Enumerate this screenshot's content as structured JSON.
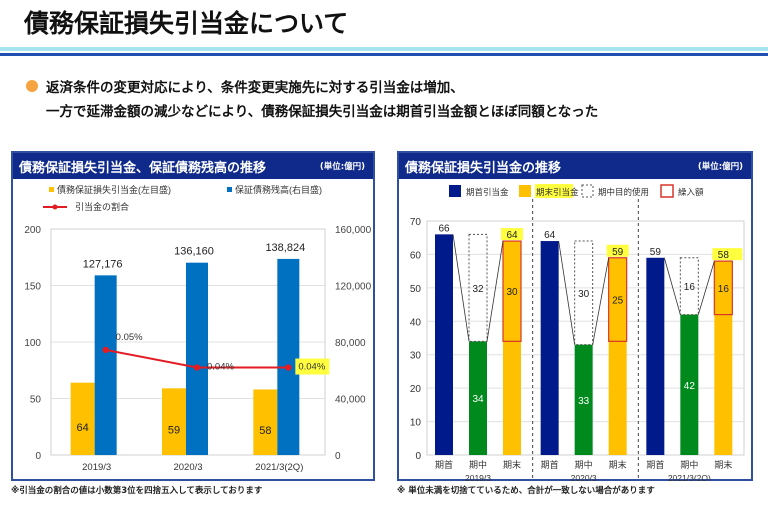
{
  "page": {
    "title": "債務保証損失引当金について",
    "lead_line1": "返済条件の変更対応により、条件変更実施先に対する引当金は増加、",
    "lead_line2": "一方で延滞金額の減少などにより、債務保証損失引当金は期首引当金額とほぼ同額となった",
    "bullet_color": "#f6a341"
  },
  "panels": {
    "left": {
      "title": "債務保証損失引当金、保証債務残高の推移",
      "unit": "(単位:億円)",
      "note": "※引当金の割合の値は小数第3位を四捨五入して表示しております"
    },
    "right": {
      "title": "債務保証損失引当金の推移",
      "unit": "(単位:億円)",
      "note": "※ 単位未満を切捨てているため、合計が一致しない場合があります"
    }
  },
  "chart_data": [
    {
      "type": "bar",
      "title": "債務保証損失引当金、保証債務残高の推移",
      "categories": [
        "2019/3",
        "2020/3",
        "2021/3(2Q)"
      ],
      "series": [
        {
          "name": "債務保証損失引当金(左目盛)",
          "axis": "left",
          "color": "#ffc000",
          "values": [
            64,
            59,
            58
          ],
          "labels": [
            "64",
            "59",
            "58"
          ]
        },
        {
          "name": "保証債務残高(右目盛)",
          "axis": "right",
          "color": "#0070c0",
          "values": [
            127176,
            136160,
            138824
          ],
          "labels": [
            "127,176",
            "136,160",
            "138,824"
          ]
        },
        {
          "name": "引当金の割合",
          "type": "line",
          "color": "#e31b23",
          "values": [
            0.05,
            0.04,
            0.04
          ],
          "labels": [
            "0.05%",
            "0.04%",
            "0.04%"
          ],
          "highlighted_label_index": 2
        }
      ],
      "left_axis": {
        "min": 0,
        "max": 200,
        "ticks": [
          "0",
          "50",
          "100",
          "150",
          "200"
        ]
      },
      "right_axis": {
        "min": 0,
        "max": 160000,
        "ticks": [
          "0",
          "40,000",
          "80,000",
          "120,000",
          "160,000"
        ]
      },
      "legend": {
        "position": "top",
        "items": [
          "債務保証損失引当金(左目盛)",
          "保証債務残高(右目盛)",
          "引当金の割合"
        ]
      },
      "grid": true
    },
    {
      "type": "bar",
      "title": "債務保証損失引当金の推移",
      "ylim": [
        0,
        70
      ],
      "yticks": [
        "0",
        "10",
        "20",
        "30",
        "40",
        "50",
        "60",
        "70"
      ],
      "groups": [
        {
          "label": "2019/3",
          "opening": 66,
          "middle": 34,
          "used": 32,
          "ending": 64,
          "added": 30
        },
        {
          "label": "2020/3",
          "opening": 64,
          "middle": 33,
          "used": 30,
          "ending": 59,
          "added": 25
        },
        {
          "label": "2021/3(2Q)",
          "opening": 59,
          "middle": 42,
          "used": 16,
          "ending": 58,
          "added": 16
        }
      ],
      "sub_categories": [
        "期首",
        "期中",
        "期末"
      ],
      "legend": {
        "position": "top",
        "items": [
          {
            "name": "期首引当金",
            "color": "#001a8c"
          },
          {
            "name": "期末引当金",
            "color": "#ffc000",
            "highlighted": true
          },
          {
            "name": "期中目的使用",
            "style": "dotted-outline"
          },
          {
            "name": "繰入額",
            "style": "red-outline"
          }
        ]
      },
      "colors": {
        "opening": "#001a8c",
        "middle": "#008a1e",
        "ending": "#ffc000",
        "added_border": "#d9352a",
        "highlight": "#ffff40"
      },
      "grid": true
    }
  ]
}
